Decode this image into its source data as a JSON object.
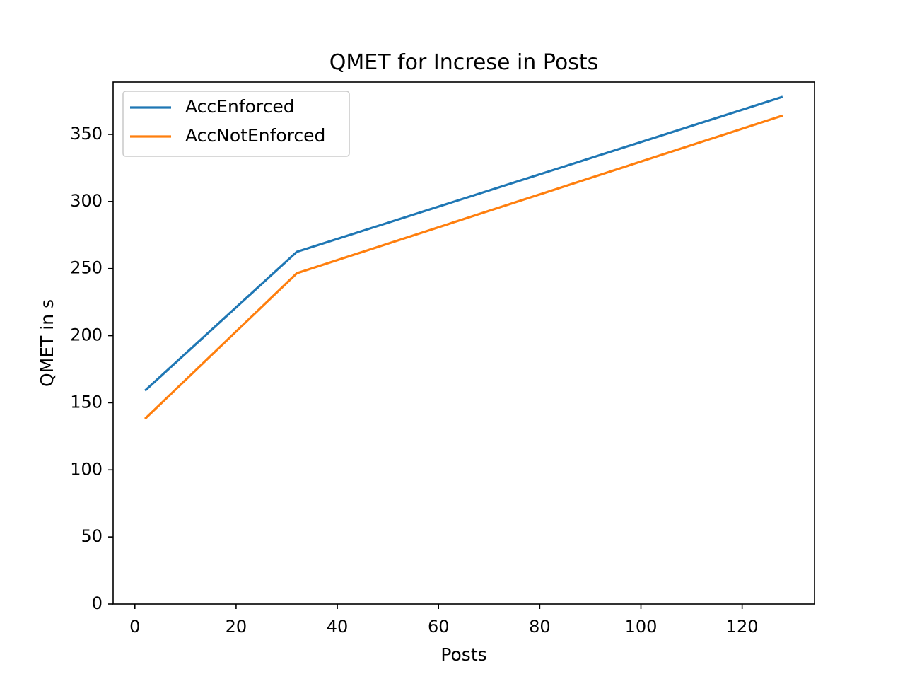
{
  "chart_data": {
    "type": "line",
    "title": "QMET for Increse in Posts",
    "xlabel": "Posts",
    "ylabel": "QMET in s",
    "x": [
      2,
      32,
      128
    ],
    "series": [
      {
        "name": "AccEnforced",
        "values": [
          159,
          262.5,
          378
        ],
        "color": "#1f77b4"
      },
      {
        "name": "AccNotEnforced",
        "values": [
          138,
          246.5,
          364
        ],
        "color": "#ff7f0e"
      }
    ],
    "xlim": [
      -4.3,
      134.3
    ],
    "ylim": [
      0,
      389
    ],
    "xticks": [
      0,
      20,
      40,
      60,
      80,
      100,
      120
    ],
    "yticks": [
      0,
      50,
      100,
      150,
      200,
      250,
      300,
      350
    ],
    "xtick_labels": [
      "0",
      "20",
      "40",
      "60",
      "80",
      "100",
      "120"
    ],
    "ytick_labels": [
      "0",
      "50",
      "100",
      "150",
      "200",
      "250",
      "300",
      "350"
    ],
    "grid": false,
    "legend_position": "top-left"
  }
}
